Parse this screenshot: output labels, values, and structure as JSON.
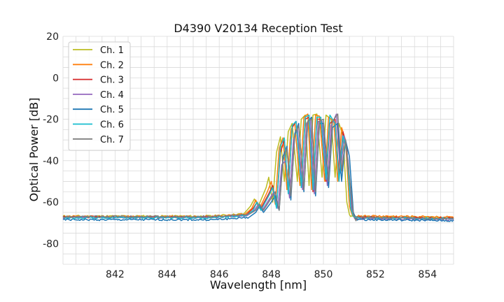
{
  "chart_data": {
    "type": "line",
    "title": "D4390 V20134 Reception Test",
    "xlabel": "Wavelength [nm]",
    "ylabel": "Optical Power [dB]",
    "xlim": [
      840.0,
      855.0
    ],
    "ylim": [
      -90,
      20
    ],
    "xticks": [
      842,
      844,
      846,
      848,
      850,
      852,
      854
    ],
    "yticks": [
      -80,
      -60,
      -40,
      -20,
      0,
      20
    ],
    "x_minor_step": 0.5,
    "y_minor_step": 5,
    "grid": true,
    "legend_position": "top-left",
    "series": [
      {
        "name": "Ch. 1",
        "color": "#bcbd22",
        "baseline_start": -66.8,
        "baseline_end": -67.5,
        "points": [
          [
            847.2,
            -62
          ],
          [
            847.35,
            -58.5
          ],
          [
            847.5,
            -62
          ],
          [
            847.8,
            -53
          ],
          [
            847.9,
            -48
          ],
          [
            848.05,
            -60
          ],
          [
            848.2,
            -36
          ],
          [
            848.35,
            -28.5
          ],
          [
            848.5,
            -50
          ],
          [
            848.65,
            -26
          ],
          [
            848.8,
            -22
          ],
          [
            849.0,
            -50
          ],
          [
            849.15,
            -20
          ],
          [
            849.3,
            -18
          ],
          [
            849.45,
            -52
          ],
          [
            849.6,
            -18
          ],
          [
            849.75,
            -17.5
          ],
          [
            849.95,
            -48
          ],
          [
            850.1,
            -18
          ],
          [
            850.3,
            -20
          ],
          [
            850.45,
            -48
          ],
          [
            850.6,
            -22
          ],
          [
            850.75,
            -28
          ],
          [
            850.9,
            -60
          ],
          [
            851.0,
            -66
          ]
        ]
      },
      {
        "name": "Ch. 2",
        "color": "#ff7f0e",
        "baseline_start": -67.0,
        "baseline_end": -67.2,
        "points": [
          [
            847.25,
            -63
          ],
          [
            847.4,
            -59
          ],
          [
            847.55,
            -63
          ],
          [
            847.85,
            -55
          ],
          [
            848.0,
            -50
          ],
          [
            848.15,
            -61
          ],
          [
            848.3,
            -34
          ],
          [
            848.45,
            -29
          ],
          [
            848.6,
            -54
          ],
          [
            848.75,
            -25
          ],
          [
            848.9,
            -22
          ],
          [
            849.1,
            -52
          ],
          [
            849.25,
            -19
          ],
          [
            849.4,
            -17.5
          ],
          [
            849.55,
            -54
          ],
          [
            849.7,
            -18
          ],
          [
            849.85,
            -18.5
          ],
          [
            850.05,
            -50
          ],
          [
            850.2,
            -19
          ],
          [
            850.4,
            -21
          ],
          [
            850.55,
            -50
          ],
          [
            850.7,
            -24
          ],
          [
            850.85,
            -30
          ],
          [
            851.0,
            -62
          ],
          [
            851.1,
            -66
          ]
        ]
      },
      {
        "name": "Ch. 3",
        "color": "#d62728",
        "baseline_start": -67.2,
        "baseline_end": -67.8,
        "points": [
          [
            847.3,
            -63
          ],
          [
            847.45,
            -60
          ],
          [
            847.6,
            -63
          ],
          [
            847.9,
            -56
          ],
          [
            848.05,
            -52
          ],
          [
            848.2,
            -62
          ],
          [
            848.35,
            -36
          ],
          [
            848.5,
            -30
          ],
          [
            848.65,
            -55
          ],
          [
            848.8,
            -24
          ],
          [
            848.95,
            -21
          ],
          [
            849.15,
            -52
          ],
          [
            849.3,
            -20
          ],
          [
            849.45,
            -19
          ],
          [
            849.6,
            -55
          ],
          [
            849.75,
            -20
          ],
          [
            849.9,
            -20
          ],
          [
            850.1,
            -50
          ],
          [
            850.25,
            -22
          ],
          [
            850.45,
            -20
          ],
          [
            850.6,
            -48
          ],
          [
            850.75,
            -26
          ],
          [
            850.9,
            -34
          ],
          [
            851.05,
            -62
          ],
          [
            851.15,
            -66
          ]
        ]
      },
      {
        "name": "Ch. 4",
        "color": "#9467bd",
        "baseline_start": -67.5,
        "baseline_end": -68.5,
        "points": [
          [
            847.35,
            -64
          ],
          [
            847.5,
            -61
          ],
          [
            847.65,
            -64
          ],
          [
            847.95,
            -58
          ],
          [
            848.1,
            -55
          ],
          [
            848.25,
            -63
          ],
          [
            848.4,
            -42
          ],
          [
            848.55,
            -40
          ],
          [
            848.7,
            -58
          ],
          [
            848.85,
            -30
          ],
          [
            849.0,
            -24
          ],
          [
            849.2,
            -54
          ],
          [
            849.35,
            -22
          ],
          [
            849.5,
            -20
          ],
          [
            849.65,
            -56
          ],
          [
            849.8,
            -21
          ],
          [
            849.95,
            -21
          ],
          [
            850.15,
            -52
          ],
          [
            850.3,
            -23
          ],
          [
            850.5,
            -17.5
          ],
          [
            850.65,
            -46
          ],
          [
            850.8,
            -28
          ],
          [
            850.95,
            -40
          ],
          [
            851.1,
            -64
          ],
          [
            851.2,
            -68
          ]
        ]
      },
      {
        "name": "Ch. 5",
        "color": "#1f77b4",
        "baseline_start": -68.5,
        "baseline_end": -69.0,
        "points": [
          [
            847.4,
            -65
          ],
          [
            847.55,
            -62
          ],
          [
            847.7,
            -65
          ],
          [
            848.0,
            -60
          ],
          [
            848.15,
            -57
          ],
          [
            848.3,
            -64
          ],
          [
            848.45,
            -38
          ],
          [
            848.6,
            -33
          ],
          [
            848.75,
            -59
          ],
          [
            848.9,
            -27
          ],
          [
            849.05,
            -22
          ],
          [
            849.25,
            -55
          ],
          [
            849.4,
            -21
          ],
          [
            849.55,
            -19
          ],
          [
            849.7,
            -57
          ],
          [
            849.85,
            -22
          ],
          [
            850.0,
            -22
          ],
          [
            850.2,
            -53
          ],
          [
            850.35,
            -24
          ],
          [
            850.55,
            -22
          ],
          [
            850.7,
            -50
          ],
          [
            850.85,
            -30
          ],
          [
            851.0,
            -38
          ],
          [
            851.15,
            -65
          ],
          [
            851.25,
            -68
          ]
        ]
      },
      {
        "name": "Ch. 6",
        "color": "#17becf",
        "baseline_start": -67.5,
        "baseline_end": -68.0,
        "points": [
          [
            847.3,
            -64
          ],
          [
            847.45,
            -60
          ],
          [
            847.6,
            -64
          ],
          [
            847.9,
            -57
          ],
          [
            848.05,
            -53
          ],
          [
            848.2,
            -63
          ],
          [
            848.35,
            -33
          ],
          [
            848.5,
            -29
          ],
          [
            848.65,
            -56
          ],
          [
            848.8,
            -23
          ],
          [
            848.95,
            -21
          ],
          [
            849.15,
            -53
          ],
          [
            849.3,
            -19
          ],
          [
            849.45,
            -18
          ],
          [
            849.6,
            -54
          ],
          [
            849.75,
            -19
          ],
          [
            849.9,
            -19
          ],
          [
            850.1,
            -49
          ],
          [
            850.25,
            -18
          ],
          [
            850.45,
            -22
          ],
          [
            850.6,
            -50
          ],
          [
            850.75,
            -28
          ],
          [
            850.9,
            -36
          ],
          [
            851.05,
            -63
          ],
          [
            851.15,
            -67
          ]
        ]
      },
      {
        "name": "Ch. 7",
        "color": "#7f7f7f",
        "baseline_start": -67.0,
        "baseline_end": -68.0,
        "points": [
          [
            847.4,
            -64
          ],
          [
            847.55,
            -61
          ],
          [
            847.7,
            -64
          ],
          [
            848.0,
            -58
          ],
          [
            848.15,
            -55
          ],
          [
            848.3,
            -64
          ],
          [
            848.45,
            -40
          ],
          [
            848.6,
            -34
          ],
          [
            848.75,
            -57
          ],
          [
            848.9,
            -28
          ],
          [
            849.05,
            -23
          ],
          [
            849.25,
            -54
          ],
          [
            849.4,
            -21
          ],
          [
            849.55,
            -20
          ],
          [
            849.7,
            -55
          ],
          [
            849.85,
            -21
          ],
          [
            850.0,
            -20
          ],
          [
            850.2,
            -50
          ],
          [
            850.35,
            -21
          ],
          [
            850.55,
            -17.5
          ],
          [
            850.7,
            -45
          ],
          [
            850.85,
            -30
          ],
          [
            851.0,
            -48
          ],
          [
            851.15,
            -66
          ],
          [
            851.25,
            -69
          ]
        ]
      }
    ]
  }
}
